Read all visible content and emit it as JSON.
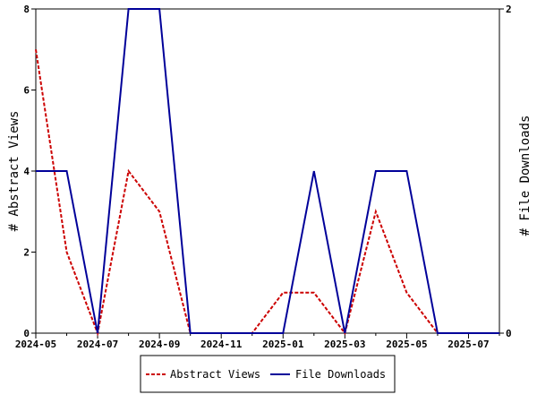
{
  "chart_data": {
    "type": "line",
    "x": [
      "2024-05",
      "2024-06",
      "2024-07",
      "2024-08",
      "2024-09",
      "2024-10",
      "2024-11",
      "2024-12",
      "2025-01",
      "2025-02",
      "2025-03",
      "2025-04",
      "2025-05",
      "2025-06",
      "2025-07",
      "2025-08"
    ],
    "x_tick_labels": [
      "2024-05",
      "2024-07",
      "2024-09",
      "2024-11",
      "2025-01",
      "2025-03",
      "2025-05",
      "2025-07"
    ],
    "y_left": {
      "label": "# Abstract Views",
      "ylim": [
        0,
        8
      ],
      "ticks": [
        "0",
        "2",
        "4",
        "6",
        "8"
      ]
    },
    "y_right": {
      "label": "# File Downloads",
      "ylim": [
        0,
        2
      ],
      "ticks": [
        "0",
        "2"
      ]
    },
    "series": [
      {
        "name": "Abstract Views",
        "axis": "left",
        "color": "#cc0000",
        "dashed": true,
        "values": [
          7,
          2,
          0,
          4,
          3,
          0,
          0,
          0,
          1,
          1,
          0,
          3,
          1,
          0,
          0,
          0
        ]
      },
      {
        "name": "File Downloads",
        "axis": "right",
        "color": "#000099",
        "dashed": false,
        "values": [
          1,
          1,
          0,
          2,
          2,
          0,
          0,
          0,
          0,
          1,
          0,
          1,
          1,
          0,
          0,
          0
        ]
      }
    ],
    "legend_position": "bottom"
  }
}
